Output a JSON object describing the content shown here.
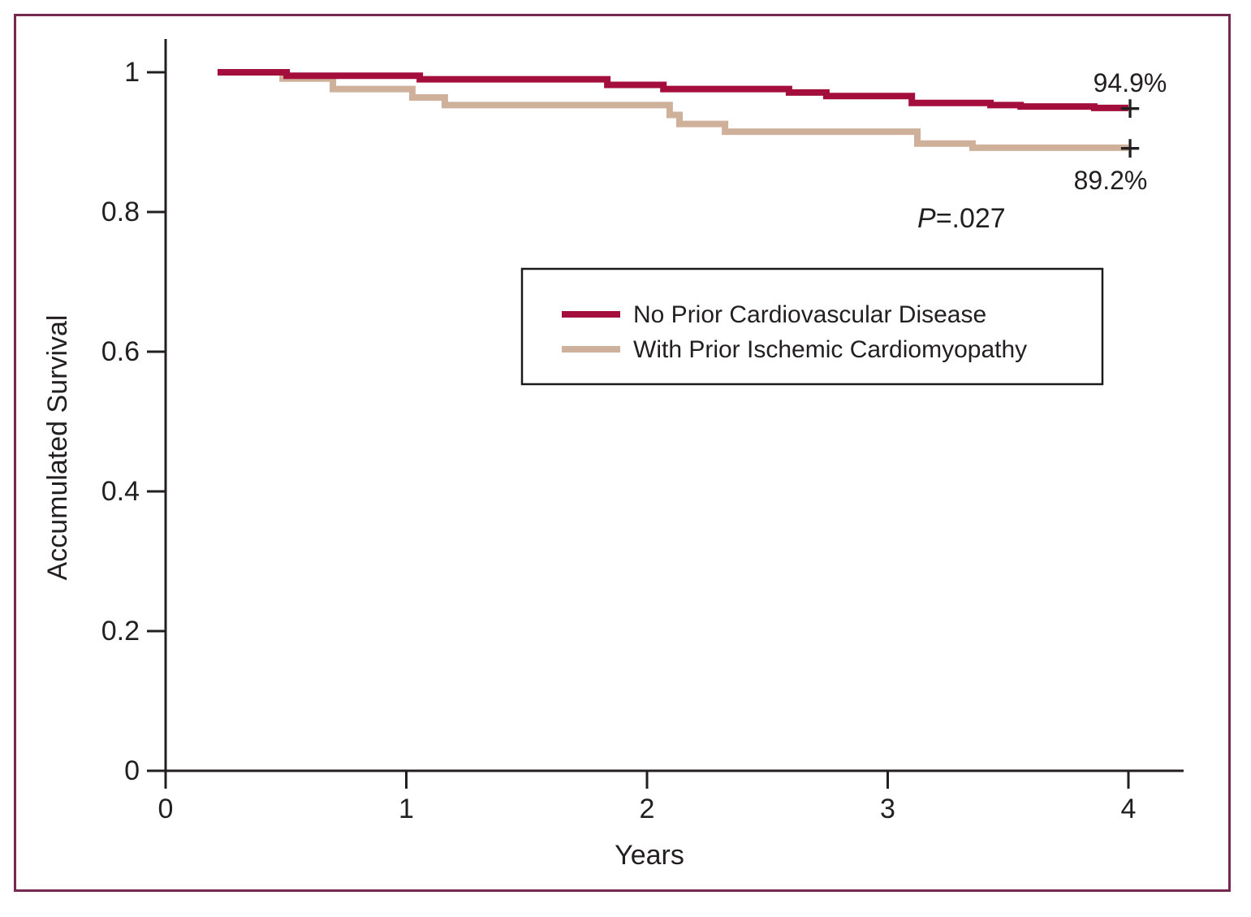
{
  "frame_color": "#76294E",
  "background_color": "#FFFFFF",
  "chart_data": {
    "type": "line",
    "subtype": "kaplan_meier_step_survival",
    "title": "",
    "xlabel": "Years",
    "ylabel": "Accumulated Survival",
    "xlim": [
      0,
      4.23
    ],
    "ylim": [
      0,
      1.046
    ],
    "grid": false,
    "axis_color": "#231F20",
    "xticks": [
      0,
      1,
      2,
      3,
      4
    ],
    "xtick_labels": [
      "0",
      "1",
      "2",
      "3",
      "4"
    ],
    "ytick_values": [
      1,
      0.8,
      0.6,
      0.4,
      0.2,
      0
    ],
    "ytick_labels": [
      "1",
      "0.8",
      "0.6",
      "0.4",
      "0.2",
      "0"
    ],
    "p_value": {
      "prefix": "P",
      "rest": "=.027",
      "full": "P=.027"
    },
    "legend": {
      "position": "center-box",
      "border_color": "#1A1A1A"
    },
    "series": [
      {
        "name": "With Prior Ischemic Cardiomyopathy",
        "color": "#CFB19B",
        "final_label": "89.2%",
        "censor_marker": "+",
        "end_time": 4.0,
        "final_value": 0.892,
        "steps": [
          [
            0.486,
            0.997
          ],
          [
            0.486,
            0.991
          ],
          [
            0.695,
            0.976
          ],
          [
            1.025,
            0.964
          ],
          [
            1.16,
            0.953
          ],
          [
            2.094,
            0.939
          ],
          [
            2.135,
            0.926
          ],
          [
            2.324,
            0.915
          ],
          [
            3.123,
            0.898
          ],
          [
            3.352,
            0.892
          ]
        ]
      },
      {
        "name": "No Prior Cardiovascular Disease",
        "color": "#A40E3C",
        "final_label": "94.9%",
        "censor_marker": "+",
        "end_time": 4.0,
        "final_value": 0.949,
        "steps": [
          [
            0.216,
            1.0
          ],
          [
            0.503,
            0.995
          ],
          [
            1.056,
            0.99
          ],
          [
            1.835,
            0.982
          ],
          [
            2.068,
            0.976
          ],
          [
            2.59,
            0.971
          ],
          [
            2.745,
            0.966
          ],
          [
            3.1,
            0.956
          ],
          [
            3.427,
            0.953
          ],
          [
            3.552,
            0.951
          ],
          [
            3.858,
            0.949
          ]
        ]
      }
    ]
  }
}
